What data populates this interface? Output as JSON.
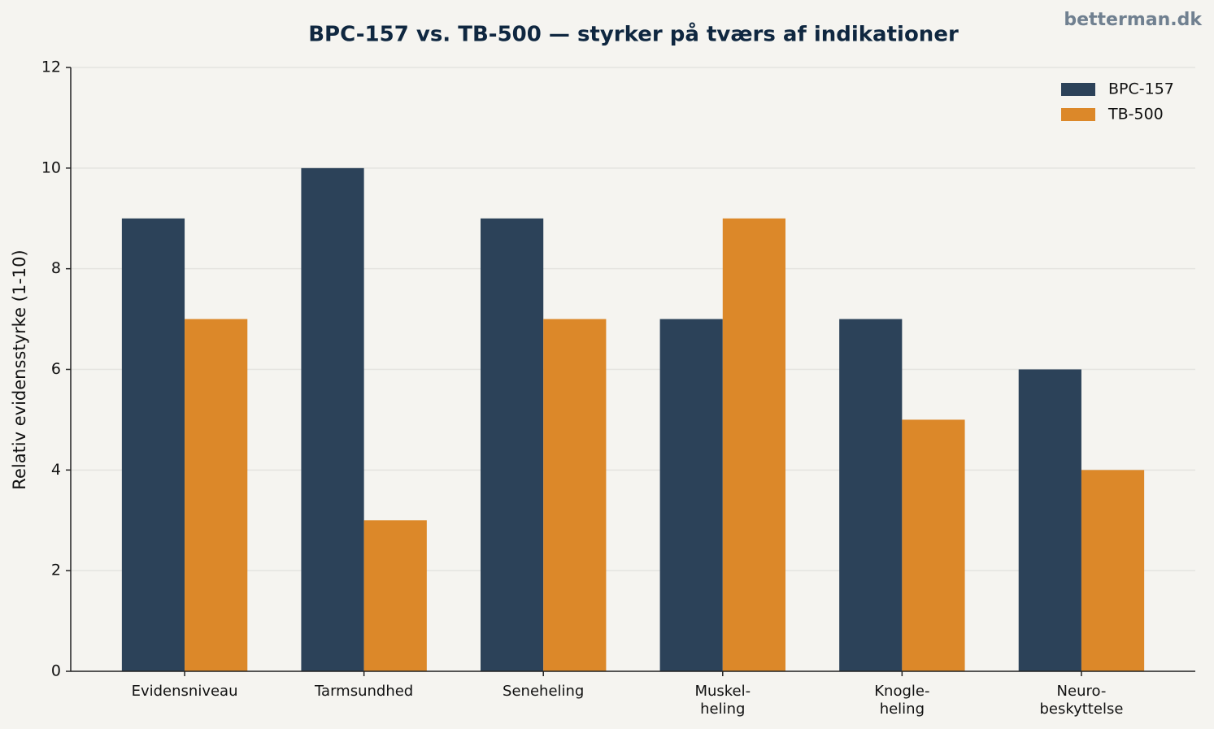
{
  "chart_data": {
    "type": "bar",
    "title": "BPC-157 vs. TB-500 — styrker på tværs af indikationer",
    "watermark": "betterman.dk",
    "y_label": "Relativ evidensstyrke (1-10)",
    "categories": [
      "Evidensniveau",
      "Tarmsundhed",
      "Seneheling",
      "Muskel-\nheling",
      "Knogle-\nheling",
      "Neuro-\nbeskyttelse"
    ],
    "series": [
      {
        "name": "BPC-157",
        "color": "#2c4259",
        "values": [
          9,
          10,
          9,
          7,
          7,
          6
        ]
      },
      {
        "name": "TB-500",
        "color": "#dc8829",
        "values": [
          7,
          3,
          7,
          9,
          5,
          4
        ]
      }
    ],
    "ylim": [
      0,
      12
    ],
    "yticks": [
      0,
      2,
      4,
      6,
      8,
      10,
      12
    ],
    "grid": true,
    "legend": "upper right"
  }
}
